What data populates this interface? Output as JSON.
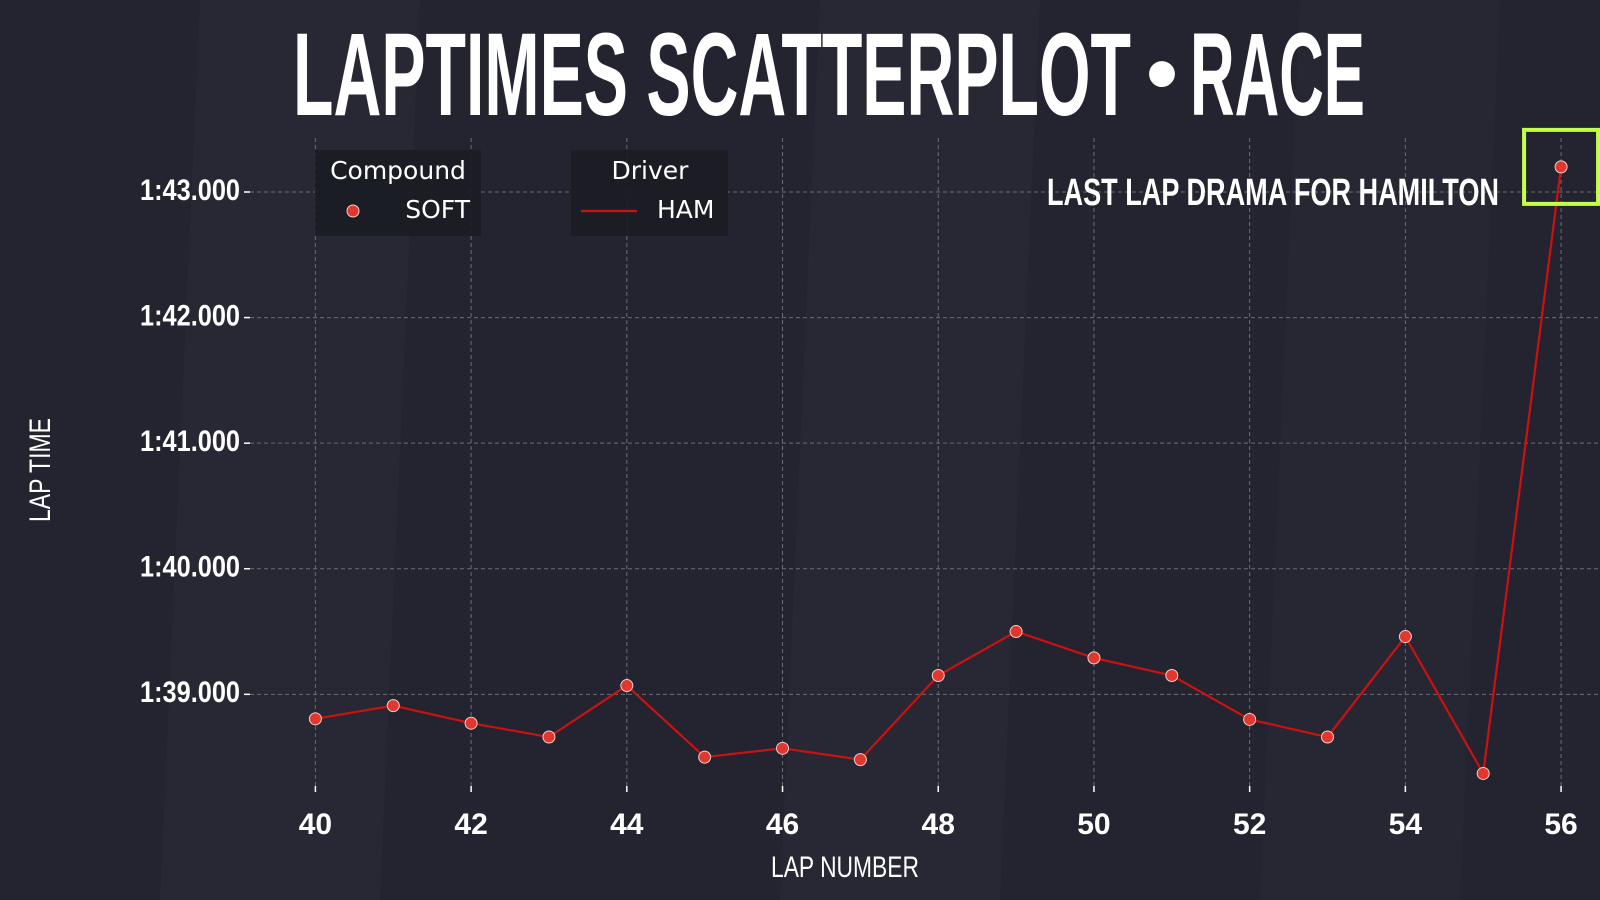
{
  "chart_data": {
    "type": "line",
    "title_left": "LAPTIMES SCATTERPLOT",
    "title_separator": "•",
    "title_right": "RACE",
    "x_label": "LAP NUMBER",
    "y_label": "LAP TIME",
    "annotation": "LAST LAP DRAMA FOR HAMILTON",
    "x": [
      40,
      41,
      42,
      43,
      44,
      45,
      46,
      47,
      48,
      49,
      50,
      51,
      52,
      53,
      54,
      55,
      56
    ],
    "series": [
      {
        "name": "HAM",
        "color": "#cc1111",
        "marker_color": "#e0382e",
        "values": [
          98.805,
          98.91,
          98.77,
          98.66,
          99.07,
          98.5,
          98.57,
          98.48,
          99.15,
          99.5,
          99.29,
          99.15,
          98.8,
          98.66,
          99.46,
          98.37,
          103.2
        ]
      }
    ],
    "compound_legend": {
      "title": "Compound",
      "entries": [
        {
          "name": "SOFT",
          "color": "#e0382e"
        }
      ]
    },
    "driver_legend_title": "Driver",
    "xlim": [
      39.16,
      56.5
    ],
    "ylim": [
      98.27,
      103.43
    ],
    "xticks": [
      40,
      42,
      44,
      46,
      48,
      50,
      52,
      54,
      56
    ],
    "yticks": [
      {
        "value": 99,
        "label": "1:39.000"
      },
      {
        "value": 100,
        "label": "1:40.000"
      },
      {
        "value": 101,
        "label": "1:41.000"
      },
      {
        "value": 102,
        "label": "1:42.000"
      },
      {
        "value": 103,
        "label": "1:43.000"
      }
    ],
    "grid": true,
    "title_color": "#c6ff4a",
    "highlight_color": "#c6ff4a"
  }
}
